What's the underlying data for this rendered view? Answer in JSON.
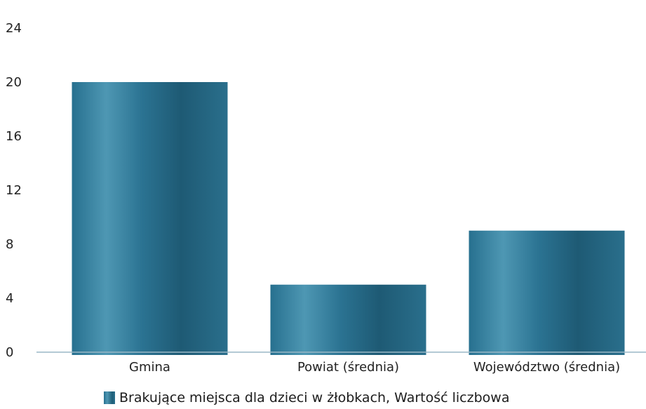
{
  "chart_data": {
    "type": "bar",
    "categories": [
      "Gmina",
      "Powiat (średnia)",
      "Województwo (średnia)"
    ],
    "series": [
      {
        "name": "Brakujące miejsca dla dzieci w żłobkach, Wartość liczbowa",
        "values": [
          20,
          5,
          9
        ]
      }
    ],
    "ylim": [
      0,
      24
    ],
    "yticks": [
      0,
      4,
      8,
      12,
      16,
      20,
      24
    ],
    "grid": false,
    "legend": "bottom",
    "colors": {
      "bar": "#27708f",
      "bar_highlight": "#4e97b3",
      "bar_dark": "#1f5e78",
      "axis": "#9ab7c6"
    }
  },
  "legend": {
    "label": "Brakujące miejsca dla dzieci w żłobkach, Wartość liczbowa"
  }
}
